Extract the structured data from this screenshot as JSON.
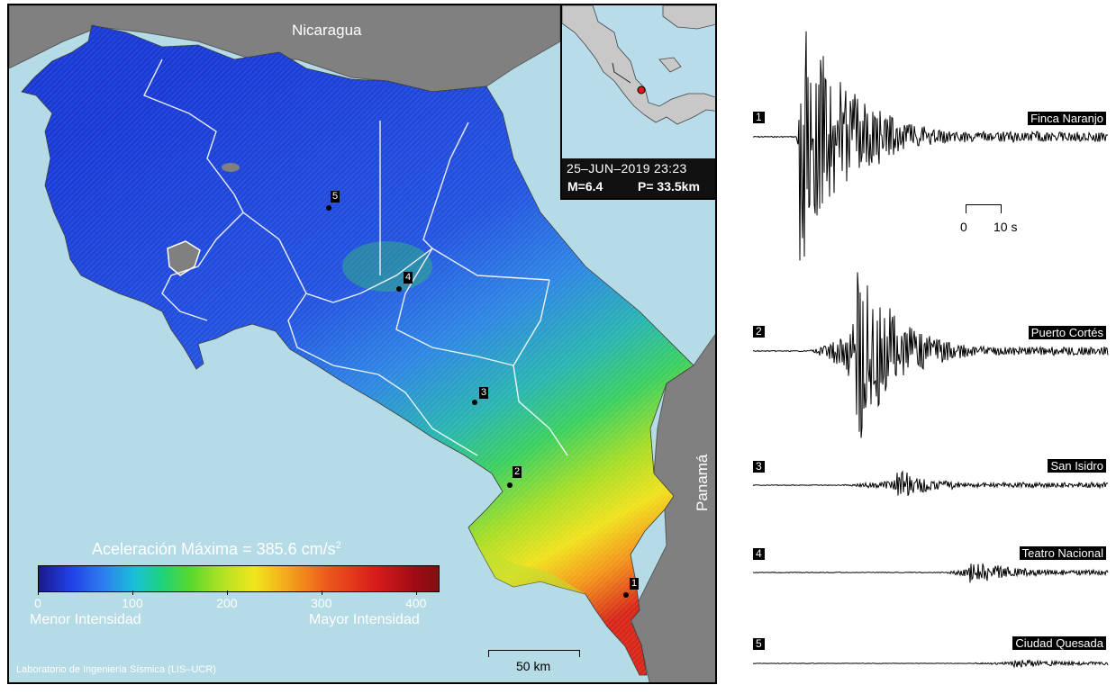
{
  "map": {
    "country_north": "Nicaragua",
    "country_south": "Panamá",
    "inset": {
      "datetime": "25–JUN–2019 23:23",
      "magnitude": "M=6.4",
      "depth": "P= 33.5km"
    },
    "colorbar": {
      "title": "Aceleración Máxima =  385.6 cm/s",
      "title_sup": "2",
      "ticks": [
        "0",
        "100",
        "200",
        "300",
        "400"
      ],
      "tick_values": [
        0,
        100,
        200,
        300,
        400
      ],
      "range": [
        0,
        425
      ],
      "min_label": "Menor Intensidad",
      "max_label": "Mayor Intensidad"
    },
    "credit": "Laboratorio de Ingeniería Sísmica (LIS–UCR)",
    "scale_label": "50 km",
    "stations": [
      {
        "id": "1"
      },
      {
        "id": "2"
      },
      {
        "id": "3"
      },
      {
        "id": "4"
      },
      {
        "id": "5"
      }
    ]
  },
  "traces": {
    "time_scale_start": "0",
    "time_scale_end": "10 s",
    "items": [
      {
        "num": "1",
        "name": "Finca Naranjo"
      },
      {
        "num": "2",
        "name": "Puerto Cortés"
      },
      {
        "num": "3",
        "name": "San Isidro"
      },
      {
        "num": "4",
        "name": "Teatro Nacional"
      },
      {
        "num": "5",
        "name": "Ciudad Quesada"
      }
    ]
  },
  "colors": {
    "sea": "#b4dbe6",
    "land": "#808080"
  }
}
